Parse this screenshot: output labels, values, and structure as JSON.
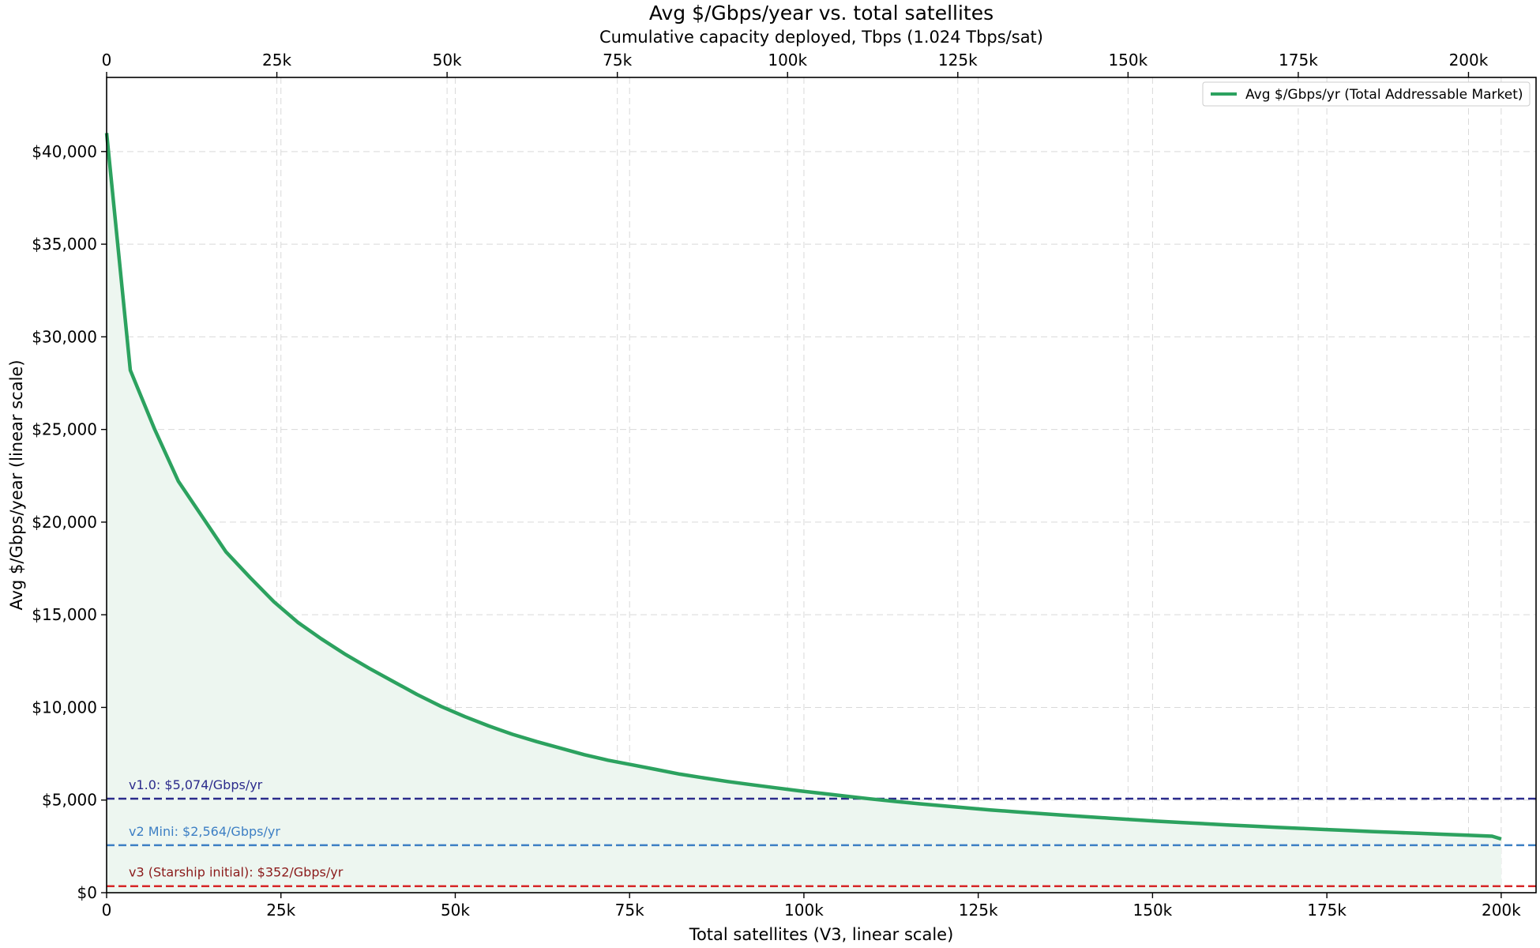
{
  "chart_data": {
    "type": "area",
    "title": "Avg $/Gbps/year vs. total satellites",
    "top_axis_label": "Cumulative capacity deployed, Tbps (1.024 Tbps/sat)",
    "xlabel": "Total satellites (V3, linear scale)",
    "ylabel": "Avg $/Gbps/year (linear scale)",
    "xlim": [
      0,
      205000
    ],
    "ylim": [
      0,
      44000
    ],
    "top_xlim": [
      0,
      209920
    ],
    "grid": true,
    "legend_position": "top-right",
    "x_ticks": [
      {
        "value": 0,
        "label": "0"
      },
      {
        "value": 25000,
        "label": "25k"
      },
      {
        "value": 50000,
        "label": "50k"
      },
      {
        "value": 75000,
        "label": "75k"
      },
      {
        "value": 100000,
        "label": "100k"
      },
      {
        "value": 125000,
        "label": "125k"
      },
      {
        "value": 150000,
        "label": "150k"
      },
      {
        "value": 175000,
        "label": "175k"
      },
      {
        "value": 200000,
        "label": "200k"
      }
    ],
    "top_ticks": [
      {
        "value": 0,
        "label": "0"
      },
      {
        "value": 25000,
        "label": "25k"
      },
      {
        "value": 50000,
        "label": "50k"
      },
      {
        "value": 75000,
        "label": "75k"
      },
      {
        "value": 100000,
        "label": "100k"
      },
      {
        "value": 125000,
        "label": "125k"
      },
      {
        "value": 150000,
        "label": "150k"
      },
      {
        "value": 175000,
        "label": "175k"
      },
      {
        "value": 200000,
        "label": "200k"
      }
    ],
    "y_ticks": [
      {
        "value": 0,
        "label": "$0"
      },
      {
        "value": 5000,
        "label": "$5,000"
      },
      {
        "value": 10000,
        "label": "$10,000"
      },
      {
        "value": 15000,
        "label": "$15,000"
      },
      {
        "value": 20000,
        "label": "$20,000"
      },
      {
        "value": 25000,
        "label": "$25,000"
      },
      {
        "value": 30000,
        "label": "$30,000"
      },
      {
        "value": 35000,
        "label": "$35,000"
      },
      {
        "value": 40000,
        "label": "$40,000"
      }
    ],
    "series": [
      {
        "name": "Avg $/Gbps/yr (Total Addressable Market)",
        "color": "#2ca25f",
        "fill": "#edf6f0",
        "x": [
          0,
          3400,
          6900,
          10300,
          13700,
          17100,
          20600,
          24000,
          27400,
          30800,
          34300,
          37700,
          41100,
          44500,
          48000,
          51400,
          54800,
          58200,
          61700,
          65100,
          68500,
          71900,
          75400,
          78800,
          82200,
          85600,
          89100,
          92500,
          95900,
          99300,
          102800,
          106200,
          109600,
          113000,
          116500,
          119900,
          123300,
          126700,
          130200,
          133600,
          137000,
          140400,
          143900,
          147300,
          150700,
          154100,
          157600,
          161000,
          164400,
          167800,
          171300,
          174700,
          178100,
          181500,
          185000,
          188400,
          191800,
          195200,
          198700,
          200000
        ],
        "y": [
          41000,
          28200,
          25000,
          22200,
          20300,
          18400,
          17000,
          15700,
          14600,
          13700,
          12850,
          12100,
          11400,
          10700,
          10050,
          9500,
          9000,
          8550,
          8150,
          7800,
          7450,
          7150,
          6900,
          6650,
          6400,
          6200,
          6000,
          5830,
          5660,
          5500,
          5350,
          5200,
          5060,
          4930,
          4800,
          4690,
          4580,
          4470,
          4370,
          4280,
          4190,
          4100,
          4020,
          3940,
          3860,
          3790,
          3720,
          3650,
          3590,
          3530,
          3470,
          3410,
          3360,
          3300,
          3250,
          3200,
          3150,
          3100,
          3050,
          2900
        ]
      }
    ],
    "reference_lines": [
      {
        "label": "v1.0: $5,074/Gbps/yr",
        "value": 5074,
        "color": "#2b2b8c"
      },
      {
        "label": "v2 Mini: $2,564/Gbps/yr",
        "value": 2564,
        "color": "#3d7fc4"
      },
      {
        "label": "v3 (Starship initial): $352/Gbps/yr",
        "value": 352,
        "color": "#d62728",
        "text_color": "#8b1a1a"
      }
    ]
  }
}
